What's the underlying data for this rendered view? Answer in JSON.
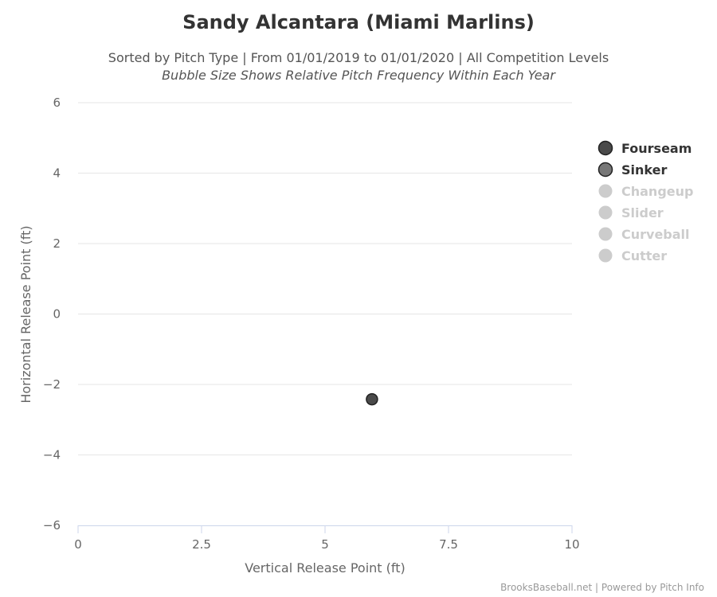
{
  "chart_data": {
    "type": "scatter",
    "title": "Sandy Alcantara (Miami Marlins)",
    "subtitle": "Sorted by Pitch Type | From 01/01/2019 to 01/01/2020 | All Competition Levels",
    "subtitle2": "Bubble Size Shows Relative Pitch Frequency Within Each Year",
    "xlabel": "Vertical Release Point (ft)",
    "ylabel": "Horizontal Release Point (ft)",
    "xlim": [
      0,
      10
    ],
    "ylim": [
      -6,
      6
    ],
    "x_ticks": [
      0,
      2.5,
      5,
      7.5,
      10
    ],
    "x_tick_labels": [
      "0",
      "2.5",
      "5",
      "7.5",
      "10"
    ],
    "y_ticks": [
      -6,
      -4,
      -2,
      0,
      2,
      4,
      6
    ],
    "y_tick_labels": [
      "−6",
      "−4",
      "−2",
      "0",
      "2",
      "4",
      "6"
    ],
    "grid": "horizontal",
    "legend_position": "right",
    "series": [
      {
        "name": "Fourseam",
        "color": "#4a4a4a",
        "enabled": true,
        "points": [
          {
            "x": 5.95,
            "y": -2.42
          }
        ]
      },
      {
        "name": "Sinker",
        "color": "#777777",
        "enabled": true,
        "points": []
      },
      {
        "name": "Changeup",
        "color": "#cccccc",
        "enabled": false,
        "points": []
      },
      {
        "name": "Slider",
        "color": "#cccccc",
        "enabled": false,
        "points": []
      },
      {
        "name": "Curveball",
        "color": "#cccccc",
        "enabled": false,
        "points": []
      },
      {
        "name": "Cutter",
        "color": "#cccccc",
        "enabled": false,
        "points": []
      }
    ],
    "credits": "BrooksBaseball.net | Powered by Pitch Info"
  }
}
